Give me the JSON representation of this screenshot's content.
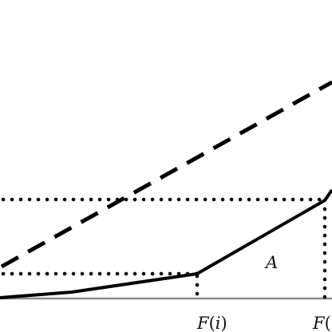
{
  "labels": {
    "area": "A",
    "tick_1_fn": "F",
    "tick_1_open": "(",
    "tick_1_arg": "i",
    "tick_1_close": ")",
    "tick_2_fn": "F",
    "tick_2_open": "("
  },
  "colors": {
    "line": "#000000",
    "axis": "#8c8c8c",
    "background": "#ffffff"
  }
}
